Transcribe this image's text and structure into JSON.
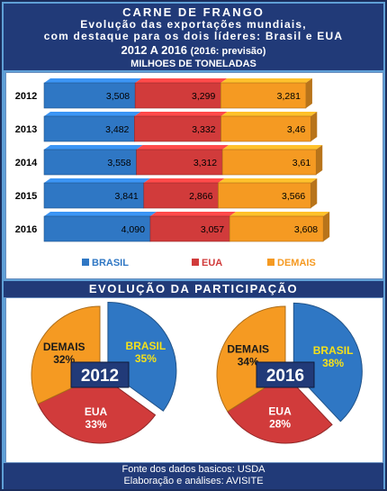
{
  "header": {
    "title": "CARNE DE FRANGO",
    "subtitle_line1": "Evolução das exportações mundiais,",
    "subtitle_line2": "com destaque para os dois líderes: Brasil e EUA",
    "period": "2012 A 2016",
    "period_note": "(2016: previsão)",
    "units": "MILHOES DE TONELADAS"
  },
  "section2_title": "EVOLUÇÃO DA PARTICIPAÇÃO",
  "footer": {
    "line1": "Fonte dos dados basicos: USDA",
    "line2": "Elaboração e análises: AVISITE"
  },
  "colors": {
    "brasil": "#2f77c4",
    "eua": "#d13b3b",
    "demais": "#f59a22",
    "label_yellow": "#f5e11a"
  },
  "chart_data": [
    {
      "type": "bar",
      "stacked": true,
      "orientation": "horizontal",
      "categories": [
        "2012",
        "2013",
        "2014",
        "2015",
        "2016"
      ],
      "series": [
        {
          "name": "BRASIL",
          "values": [
            3.508,
            3.482,
            3.558,
            3.841,
            4.09
          ],
          "labels": [
            "3,508",
            "3,482",
            "3,558",
            "3,841",
            "4,090"
          ]
        },
        {
          "name": "EUA",
          "values": [
            3.299,
            3.332,
            3.312,
            2.866,
            3.057
          ],
          "labels": [
            "3,299",
            "3,332",
            "3,312",
            "2,866",
            "3,057"
          ]
        },
        {
          "name": "DEMAIS",
          "values": [
            3.281,
            3.46,
            3.61,
            3.566,
            3.608
          ],
          "labels": [
            "3,281",
            "3,46",
            "3,61",
            "3,566",
            "3,608"
          ]
        }
      ],
      "legend_position": "bottom",
      "xlim": [
        0,
        11.2
      ]
    },
    {
      "type": "pie",
      "center_label": "2012",
      "slices": [
        {
          "name": "BRASIL",
          "value": 35,
          "label": "35%"
        },
        {
          "name": "EUA",
          "value": 33,
          "label": "33%"
        },
        {
          "name": "DEMAIS",
          "value": 32,
          "label": "32%"
        }
      ]
    },
    {
      "type": "pie",
      "center_label": "2016",
      "slices": [
        {
          "name": "BRASIL",
          "value": 38,
          "label": "38%"
        },
        {
          "name": "EUA",
          "value": 28,
          "label": "28%"
        },
        {
          "name": "DEMAIS",
          "value": 34,
          "label": "34%"
        }
      ]
    }
  ]
}
